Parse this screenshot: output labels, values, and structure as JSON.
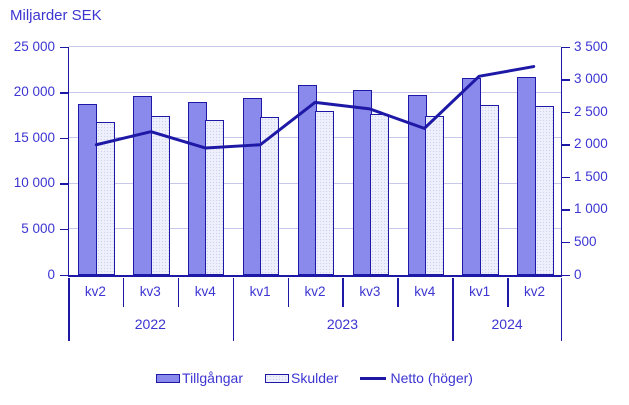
{
  "colors": {
    "text": "#3c35d2",
    "axis_and_line": "#1e18a6",
    "bar_dark_fill": "#8a8aec",
    "bar_light_fill": "#eef0fc",
    "gridline": "#c8c8ea"
  },
  "chart_data": {
    "type": "bar",
    "title": "Miljarder SEK",
    "categories": [
      "kv2",
      "kv3",
      "kv4",
      "kv1",
      "kv2",
      "kv3",
      "kv4",
      "kv1",
      "kv2"
    ],
    "year_groups": [
      {
        "label": "2022",
        "span": 3
      },
      {
        "label": "2023",
        "span": 4
      },
      {
        "label": "2024",
        "span": 2
      }
    ],
    "series": [
      {
        "name": "Tillgångar",
        "type": "bar",
        "axis": "left",
        "values": [
          18700,
          19600,
          19000,
          19400,
          20800,
          20300,
          19700,
          21600,
          21700
        ]
      },
      {
        "name": "Skulder",
        "type": "bar",
        "axis": "left",
        "values": [
          16800,
          17400,
          17000,
          17300,
          18000,
          17700,
          17400,
          18600,
          18500
        ]
      },
      {
        "name": "Netto (höger)",
        "type": "line",
        "axis": "right",
        "values": [
          2000,
          2200,
          1950,
          2000,
          2650,
          2550,
          2250,
          3050,
          3200
        ]
      }
    ],
    "left_axis": {
      "min": 0,
      "max": 25000,
      "tick_labels": [
        "0",
        "5 000",
        "10 000",
        "15 000",
        "20 000",
        "25 000"
      ]
    },
    "right_axis": {
      "min": 0,
      "max": 3500,
      "tick_labels": [
        "0",
        "500",
        "1 000",
        "1 500",
        "2 000",
        "2 500",
        "3 000",
        "3 500"
      ]
    },
    "legend_position": "bottom",
    "grid": true
  }
}
